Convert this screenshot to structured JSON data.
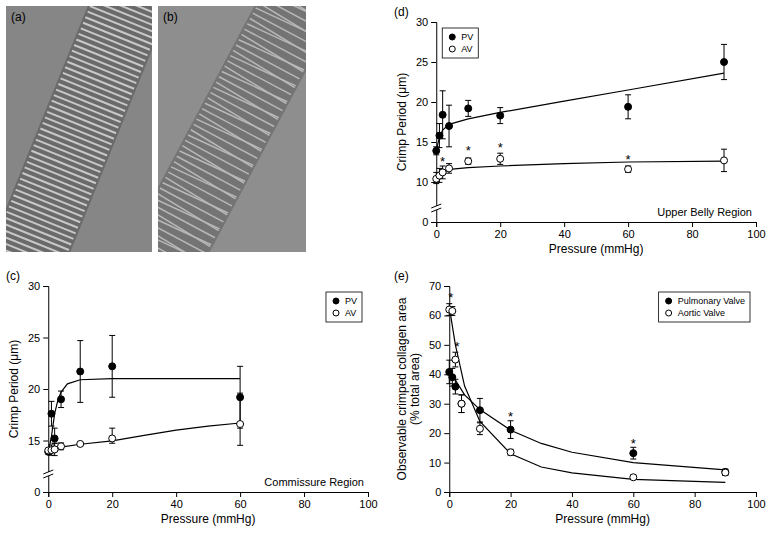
{
  "images": [
    {
      "label": "(a)"
    },
    {
      "label": "(b)"
    }
  ],
  "chart_data": [
    {
      "type": "scatter",
      "panel": "(c)",
      "xlabel": "Pressure (mmHg)",
      "ylabel": "Crimp Period (μm)",
      "xlim": [
        0,
        100
      ],
      "ylim": [
        0,
        30
      ],
      "xticks": [
        0,
        20,
        40,
        60,
        80,
        100
      ],
      "yticks": [
        0,
        15,
        20,
        25,
        30
      ],
      "legend": "upper right",
      "series": [
        {
          "name": "PV",
          "color": "#000000",
          "marker": "circle",
          "x": [
            0,
            1,
            2,
            4,
            10,
            20,
            60
          ],
          "values": [
            11.7,
            17.6,
            15.2,
            19.0,
            21.7,
            22.2,
            19.2
          ],
          "errors": [
            0.3,
            1.2,
            1.0,
            0.8,
            3.0,
            3.0,
            3.0
          ]
        },
        {
          "name": "AV",
          "color": "#000000",
          "marker": "circle-open",
          "x": [
            0,
            1,
            2,
            4,
            10,
            20,
            60
          ],
          "values": [
            12.1,
            12.2,
            12.4,
            13.3,
            14.0,
            15.2,
            16.6
          ],
          "errors": [
            0.5,
            1.5,
            1.8,
            1.0,
            0.5,
            1.0,
            3.0
          ]
        },
        {
          "type": "line",
          "color": "#000000",
          "line_style": "solid",
          "x": [
            0,
            0.5,
            1,
            2,
            3,
            4,
            6,
            10,
            20,
            40,
            60
          ],
          "values": [
            11.8,
            13.8,
            15.4,
            17.6,
            18.9,
            19.7,
            20.5,
            20.9,
            21.0,
            21.0,
            21.0
          ]
        },
        {
          "type": "line",
          "color": "#000000",
          "line_style": "solid",
          "x": [
            0,
            2,
            5,
            10,
            20,
            30,
            40,
            50,
            60
          ],
          "values": [
            12.0,
            12.5,
            13.2,
            13.9,
            14.9,
            15.5,
            16.0,
            16.4,
            16.7
          ]
        }
      ],
      "annotations": [
        {
          "text": "Commissure Region"
        }
      ]
    },
    {
      "type": "scatter",
      "panel": "(d)",
      "xlabel": "Pressure (mmHg)",
      "ylabel": "Crimp Period (μm)",
      "xlim": [
        0,
        100
      ],
      "ylim": [
        0,
        30
      ],
      "xticks": [
        0,
        20,
        40,
        60,
        80,
        100
      ],
      "yticks": [
        0,
        10,
        15,
        20,
        25,
        30
      ],
      "legend": "upper left",
      "series": [
        {
          "name": "PV",
          "color": "#000000",
          "marker": "circle",
          "x": [
            0,
            1,
            2,
            4,
            10,
            20,
            60,
            90
          ],
          "values": [
            13.9,
            15.8,
            18.4,
            17.0,
            19.2,
            18.3,
            19.4,
            25.0
          ],
          "errors": [
            0.5,
            1.5,
            3.0,
            2.6,
            1.0,
            1.0,
            1.5,
            2.2
          ]
        },
        {
          "name": "AV",
          "color": "#000000",
          "marker": "circle-open",
          "x": [
            0,
            1,
            2,
            4,
            10,
            20,
            60,
            90
          ],
          "values": [
            10.4,
            10.8,
            11.2,
            11.7,
            12.6,
            12.9,
            11.6,
            12.7
          ],
          "errors": [
            0.8,
            0.9,
            0.8,
            0.6,
            0.4,
            0.7,
            0.4,
            1.4
          ]
        },
        {
          "type": "line",
          "color": "#000000",
          "line_style": "solid",
          "x": [
            0,
            1,
            2,
            4,
            10,
            20,
            40,
            60,
            90
          ],
          "values": [
            13.9,
            15.6,
            16.5,
            17.2,
            17.9,
            18.7,
            20.1,
            21.5,
            23.6
          ]
        },
        {
          "type": "line",
          "color": "#000000",
          "line_style": "solid",
          "x": [
            0,
            1,
            2,
            5,
            10,
            20,
            40,
            60,
            90
          ],
          "values": [
            10.2,
            10.9,
            11.2,
            11.6,
            11.8,
            12.0,
            12.3,
            12.5,
            12.6
          ]
        }
      ],
      "annotations": [
        {
          "text": "Upper Belly Region"
        },
        {
          "text": "*",
          "x": 2,
          "y": 12.9
        },
        {
          "text": "*",
          "x": 10,
          "y": 14.3
        },
        {
          "text": "*",
          "x": 20,
          "y": 14.6
        },
        {
          "text": "*",
          "x": 60,
          "y": 13.2
        }
      ]
    },
    {
      "type": "scatter",
      "panel": "(e)",
      "xlabel": "Pressure (mmHg)",
      "ylabel": "Observable crimped collagen area (% total area)",
      "xlim": [
        0,
        100
      ],
      "ylim": [
        0,
        70
      ],
      "xticks": [
        0,
        20,
        40,
        60,
        80,
        100
      ],
      "yticks": [
        0,
        10,
        20,
        30,
        40,
        50,
        60,
        70
      ],
      "legend": "upper right",
      "series": [
        {
          "name": "Pulmonary Valve",
          "color": "#000000",
          "marker": "circle",
          "x": [
            0,
            1,
            2,
            4,
            10,
            20,
            60,
            90
          ],
          "values": [
            40.8,
            39.0,
            35.8,
            30.0,
            27.8,
            21.2,
            13.2,
            6.8
          ],
          "errors": [
            4.0,
            3.0,
            2.5,
            3.0,
            4.0,
            3.0,
            2.0,
            1.0
          ]
        },
        {
          "name": "Aortic Valve",
          "color": "#000000",
          "marker": "circle-open",
          "x": [
            0,
            1,
            2,
            4,
            10,
            20,
            60,
            90
          ],
          "values": [
            62.0,
            61.5,
            45.0,
            30.0,
            21.5,
            13.5,
            5.0,
            6.6
          ],
          "errors": [
            2.0,
            1.5,
            2.5,
            3.0,
            2.0,
            1.0,
            0.7,
            1.0
          ]
        },
        {
          "type": "line",
          "color": "#000000",
          "line_style": "solid",
          "x": [
            0,
            2,
            5,
            10,
            20,
            30,
            40,
            60,
            90
          ],
          "values": [
            42,
            38,
            33,
            28,
            21,
            16.5,
            13.5,
            10,
            7.5
          ]
        },
        {
          "type": "line",
          "color": "#000000",
          "line_style": "solid",
          "x": [
            0,
            2,
            5,
            10,
            20,
            30,
            40,
            60,
            90
          ],
          "values": [
            63,
            50,
            36,
            24,
            13,
            8.5,
            6.5,
            4.3,
            3.3
          ]
        }
      ],
      "annotations": [
        {
          "text": "*",
          "x": 0.5,
          "y": 67
        },
        {
          "text": "*",
          "x": 2.5,
          "y": 50.5
        },
        {
          "text": "*",
          "x": 20,
          "y": 26.5
        },
        {
          "text": "*",
          "x": 60,
          "y": 17.5
        }
      ]
    }
  ]
}
